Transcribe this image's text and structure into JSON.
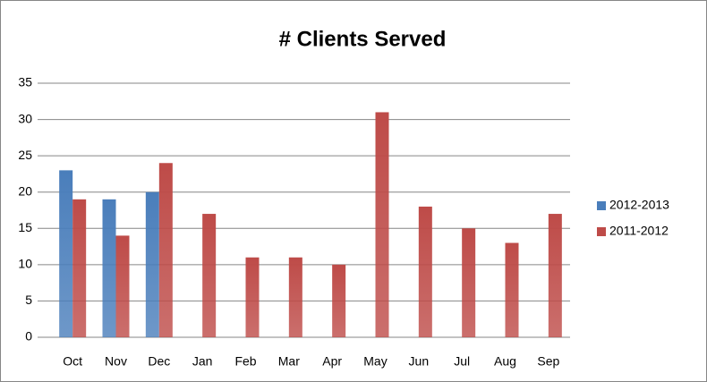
{
  "chart_data": {
    "type": "bar",
    "title": "# Clients Served",
    "categories": [
      "Oct",
      "Nov",
      "Dec",
      "Jan",
      "Feb",
      "Mar",
      "Apr",
      "May",
      "Jun",
      "Jul",
      "Aug",
      "Sep"
    ],
    "series": [
      {
        "name": "2012-2013",
        "color": "#4a7ebb",
        "values": [
          23,
          19,
          20,
          null,
          null,
          null,
          null,
          null,
          null,
          null,
          null,
          null
        ]
      },
      {
        "name": "2011-2012",
        "color": "#be4b48",
        "values": [
          19,
          14,
          24,
          17,
          11,
          11,
          10,
          31,
          18,
          15,
          13,
          17
        ]
      }
    ],
    "ylim": [
      0,
      35
    ],
    "yticks": [
      0,
      5,
      10,
      15,
      20,
      25,
      30,
      35
    ],
    "grid": true,
    "legend": "right"
  }
}
